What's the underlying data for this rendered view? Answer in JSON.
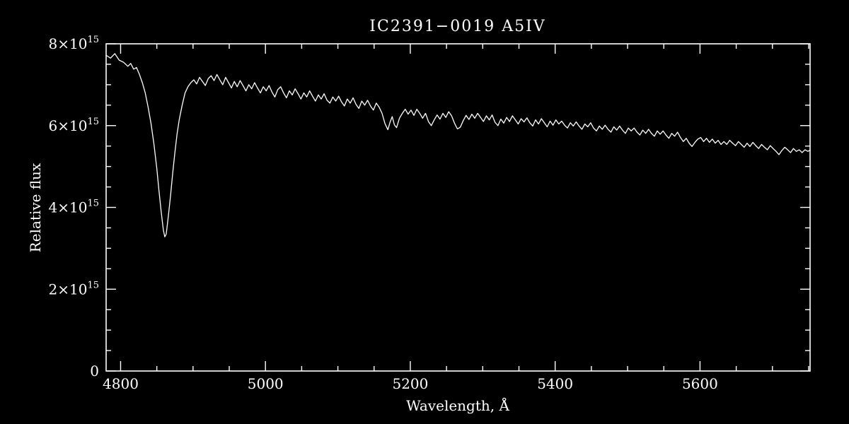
{
  "colors": {
    "background": "#000000",
    "foreground": "#ffffff"
  },
  "chart_data": {
    "type": "line",
    "title": "IC2391−0019  A5IV",
    "xlabel": "Wavelength, Å",
    "ylabel": "Relative flux",
    "xlim": [
      4780,
      5752
    ],
    "ylim": [
      0,
      8
    ],
    "y_unit": "1e15",
    "grid": false,
    "legend": "none",
    "xticks": {
      "major": [
        4800,
        5000,
        5200,
        5400,
        5600
      ],
      "major_labels": [
        "4800",
        "5000",
        "5200",
        "5400",
        "5600"
      ],
      "minor": [
        4850,
        4900,
        4950,
        5050,
        5100,
        5150,
        5250,
        5300,
        5350,
        5450,
        5500,
        5550,
        5650,
        5700,
        5750
      ]
    },
    "yticks": {
      "major": [
        {
          "v": 0,
          "base": "0",
          "exp": ""
        },
        {
          "v": 2,
          "base": "2×10",
          "exp": "15"
        },
        {
          "v": 4,
          "base": "4×10",
          "exp": "15"
        },
        {
          "v": 6,
          "base": "6×10",
          "exp": "15"
        },
        {
          "v": 8,
          "base": "8×10",
          "exp": "15"
        }
      ],
      "minor": [
        0.5,
        1,
        1.5,
        2.5,
        3,
        3.5,
        4.5,
        5,
        5.5,
        6.5,
        7,
        7.5
      ]
    },
    "annotations": {
      "absorption_line_hbeta": {
        "wavelength": 4861,
        "min_flux": 3.28
      },
      "absorption_dip_mgb": {
        "wavelength": 5170,
        "min_flux": 5.9
      }
    },
    "points": [
      [
        4780,
        7.72
      ],
      [
        4786,
        7.65
      ],
      [
        4792,
        7.76
      ],
      [
        4798,
        7.6
      ],
      [
        4804,
        7.55
      ],
      [
        4810,
        7.45
      ],
      [
        4814,
        7.52
      ],
      [
        4818,
        7.38
      ],
      [
        4822,
        7.42
      ],
      [
        4826,
        7.25
      ],
      [
        4830,
        7.05
      ],
      [
        4834,
        6.8
      ],
      [
        4838,
        6.45
      ],
      [
        4842,
        6.05
      ],
      [
        4846,
        5.55
      ],
      [
        4850,
        4.95
      ],
      [
        4853,
        4.4
      ],
      [
        4856,
        3.9
      ],
      [
        4859,
        3.45
      ],
      [
        4861,
        3.28
      ],
      [
        4863,
        3.35
      ],
      [
        4866,
        3.8
      ],
      [
        4869,
        4.3
      ],
      [
        4872,
        4.85
      ],
      [
        4875,
        5.35
      ],
      [
        4878,
        5.8
      ],
      [
        4881,
        6.15
      ],
      [
        4885,
        6.5
      ],
      [
        4889,
        6.8
      ],
      [
        4893,
        6.95
      ],
      [
        4897,
        7.05
      ],
      [
        4901,
        7.12
      ],
      [
        4905,
        7.02
      ],
      [
        4909,
        7.18
      ],
      [
        4913,
        7.08
      ],
      [
        4917,
        6.98
      ],
      [
        4921,
        7.15
      ],
      [
        4925,
        7.22
      ],
      [
        4929,
        7.1
      ],
      [
        4933,
        7.25
      ],
      [
        4937,
        7.12
      ],
      [
        4941,
        7.0
      ],
      [
        4945,
        7.18
      ],
      [
        4949,
        7.05
      ],
      [
        4953,
        6.92
      ],
      [
        4957,
        7.08
      ],
      [
        4961,
        6.95
      ],
      [
        4965,
        7.1
      ],
      [
        4969,
        6.98
      ],
      [
        4973,
        6.85
      ],
      [
        4977,
        7.0
      ],
      [
        4981,
        6.9
      ],
      [
        4985,
        7.05
      ],
      [
        4989,
        6.92
      ],
      [
        4993,
        6.8
      ],
      [
        4997,
        6.95
      ],
      [
        5001,
        6.85
      ],
      [
        5005,
        6.98
      ],
      [
        5009,
        6.82
      ],
      [
        5013,
        6.7
      ],
      [
        5017,
        6.88
      ],
      [
        5021,
        6.95
      ],
      [
        5025,
        6.8
      ],
      [
        5029,
        6.68
      ],
      [
        5033,
        6.85
      ],
      [
        5037,
        6.75
      ],
      [
        5041,
        6.9
      ],
      [
        5045,
        6.78
      ],
      [
        5049,
        6.65
      ],
      [
        5053,
        6.8
      ],
      [
        5057,
        6.7
      ],
      [
        5061,
        6.85
      ],
      [
        5065,
        6.72
      ],
      [
        5069,
        6.6
      ],
      [
        5073,
        6.75
      ],
      [
        5077,
        6.65
      ],
      [
        5081,
        6.78
      ],
      [
        5085,
        6.62
      ],
      [
        5089,
        6.55
      ],
      [
        5093,
        6.7
      ],
      [
        5097,
        6.6
      ],
      [
        5101,
        6.72
      ],
      [
        5105,
        6.58
      ],
      [
        5109,
        6.48
      ],
      [
        5113,
        6.65
      ],
      [
        5117,
        6.55
      ],
      [
        5121,
        6.68
      ],
      [
        5125,
        6.52
      ],
      [
        5129,
        6.42
      ],
      [
        5133,
        6.6
      ],
      [
        5137,
        6.5
      ],
      [
        5141,
        6.62
      ],
      [
        5145,
        6.48
      ],
      [
        5149,
        6.38
      ],
      [
        5153,
        6.55
      ],
      [
        5157,
        6.45
      ],
      [
        5161,
        6.3
      ],
      [
        5165,
        6.05
      ],
      [
        5169,
        5.9
      ],
      [
        5172,
        6.08
      ],
      [
        5175,
        6.22
      ],
      [
        5178,
        6.02
      ],
      [
        5181,
        5.95
      ],
      [
        5185,
        6.18
      ],
      [
        5189,
        6.3
      ],
      [
        5193,
        6.4
      ],
      [
        5197,
        6.28
      ],
      [
        5201,
        6.38
      ],
      [
        5205,
        6.25
      ],
      [
        5209,
        6.4
      ],
      [
        5213,
        6.3
      ],
      [
        5217,
        6.18
      ],
      [
        5221,
        6.3
      ],
      [
        5225,
        6.1
      ],
      [
        5229,
        6.0
      ],
      [
        5233,
        6.14
      ],
      [
        5237,
        6.26
      ],
      [
        5241,
        6.16
      ],
      [
        5245,
        6.3
      ],
      [
        5249,
        6.2
      ],
      [
        5253,
        6.34
      ],
      [
        5257,
        6.24
      ],
      [
        5261,
        6.06
      ],
      [
        5265,
        5.92
      ],
      [
        5269,
        5.96
      ],
      [
        5273,
        6.12
      ],
      [
        5277,
        6.25
      ],
      [
        5281,
        6.15
      ],
      [
        5285,
        6.28
      ],
      [
        5289,
        6.18
      ],
      [
        5293,
        6.3
      ],
      [
        5297,
        6.2
      ],
      [
        5301,
        6.1
      ],
      [
        5305,
        6.24
      ],
      [
        5309,
        6.14
      ],
      [
        5313,
        6.26
      ],
      [
        5317,
        6.08
      ],
      [
        5321,
        6.0
      ],
      [
        5325,
        6.16
      ],
      [
        5329,
        6.06
      ],
      [
        5333,
        6.2
      ],
      [
        5337,
        6.1
      ],
      [
        5341,
        6.24
      ],
      [
        5345,
        6.14
      ],
      [
        5349,
        6.04
      ],
      [
        5353,
        6.17
      ],
      [
        5357,
        6.09
      ],
      [
        5361,
        6.19
      ],
      [
        5365,
        6.07
      ],
      [
        5369,
        5.99
      ],
      [
        5373,
        6.14
      ],
      [
        5377,
        6.04
      ],
      [
        5381,
        6.17
      ],
      [
        5385,
        6.07
      ],
      [
        5389,
        5.97
      ],
      [
        5393,
        6.11
      ],
      [
        5397,
        6.01
      ],
      [
        5401,
        6.14
      ],
      [
        5405,
        6.04
      ],
      [
        5409,
        6.11
      ],
      [
        5413,
        6.01
      ],
      [
        5417,
        5.94
      ],
      [
        5421,
        6.07
      ],
      [
        5425,
        5.99
      ],
      [
        5429,
        6.09
      ],
      [
        5433,
        5.99
      ],
      [
        5437,
        5.91
      ],
      [
        5441,
        6.04
      ],
      [
        5445,
        5.97
      ],
      [
        5449,
        6.07
      ],
      [
        5453,
        5.94
      ],
      [
        5457,
        5.87
      ],
      [
        5461,
        5.99
      ],
      [
        5465,
        5.91
      ],
      [
        5469,
        6.01
      ],
      [
        5473,
        5.91
      ],
      [
        5477,
        5.84
      ],
      [
        5481,
        5.97
      ],
      [
        5485,
        5.89
      ],
      [
        5489,
        5.99
      ],
      [
        5493,
        5.89
      ],
      [
        5497,
        5.81
      ],
      [
        5501,
        5.94
      ],
      [
        5505,
        5.87
      ],
      [
        5509,
        5.94
      ],
      [
        5513,
        5.84
      ],
      [
        5517,
        5.77
      ],
      [
        5521,
        5.89
      ],
      [
        5525,
        5.81
      ],
      [
        5529,
        5.91
      ],
      [
        5533,
        5.81
      ],
      [
        5537,
        5.74
      ],
      [
        5541,
        5.87
      ],
      [
        5545,
        5.79
      ],
      [
        5549,
        5.87
      ],
      [
        5553,
        5.77
      ],
      [
        5557,
        5.69
      ],
      [
        5561,
        5.81
      ],
      [
        5565,
        5.74
      ],
      [
        5569,
        5.84
      ],
      [
        5573,
        5.71
      ],
      [
        5577,
        5.61
      ],
      [
        5581,
        5.69
      ],
      [
        5585,
        5.57
      ],
      [
        5589,
        5.49
      ],
      [
        5593,
        5.59
      ],
      [
        5597,
        5.67
      ],
      [
        5601,
        5.71
      ],
      [
        5605,
        5.61
      ],
      [
        5609,
        5.69
      ],
      [
        5613,
        5.59
      ],
      [
        5617,
        5.67
      ],
      [
        5621,
        5.57
      ],
      [
        5625,
        5.64
      ],
      [
        5629,
        5.54
      ],
      [
        5633,
        5.61
      ],
      [
        5637,
        5.54
      ],
      [
        5641,
        5.64
      ],
      [
        5645,
        5.57
      ],
      [
        5649,
        5.51
      ],
      [
        5653,
        5.61
      ],
      [
        5657,
        5.54
      ],
      [
        5661,
        5.47
      ],
      [
        5665,
        5.57
      ],
      [
        5669,
        5.49
      ],
      [
        5673,
        5.59
      ],
      [
        5677,
        5.51
      ],
      [
        5681,
        5.44
      ],
      [
        5685,
        5.54
      ],
      [
        5689,
        5.47
      ],
      [
        5693,
        5.41
      ],
      [
        5697,
        5.51
      ],
      [
        5701,
        5.44
      ],
      [
        5705,
        5.37
      ],
      [
        5709,
        5.29
      ],
      [
        5713,
        5.39
      ],
      [
        5717,
        5.47
      ],
      [
        5721,
        5.41
      ],
      [
        5725,
        5.34
      ],
      [
        5729,
        5.44
      ],
      [
        5733,
        5.37
      ],
      [
        5737,
        5.41
      ],
      [
        5741,
        5.34
      ],
      [
        5745,
        5.41
      ],
      [
        5749,
        5.37
      ],
      [
        5752,
        5.4
      ]
    ]
  }
}
